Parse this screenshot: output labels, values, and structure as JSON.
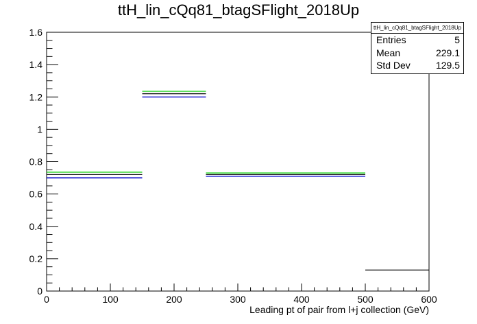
{
  "chart_data": {
    "type": "histogram",
    "title": "ttH_lin_cQq81_btagSFlight_2018Up",
    "xlabel": "Leading pt of pair from l+j collection (GeV)",
    "ylabel": "",
    "xlim": [
      0,
      600
    ],
    "ylim": [
      0,
      1.6
    ],
    "xticks": [
      "0",
      "100",
      "200",
      "300",
      "400",
      "500",
      "600"
    ],
    "yticks": [
      "0",
      "0.2",
      "0.4",
      "0.6",
      "0.8",
      "1",
      "1.2",
      "1.4",
      "1.6"
    ],
    "bins": [
      {
        "x0": 0,
        "x1": 150,
        "black": 0.72,
        "green": 0.735,
        "blue": 0.7
      },
      {
        "x0": 150,
        "x1": 250,
        "black": 1.22,
        "green": 1.235,
        "blue": 1.2
      },
      {
        "x0": 250,
        "x1": 500,
        "black": 0.72,
        "green": 0.73,
        "blue": 0.71
      },
      {
        "x0": 500,
        "x1": 600,
        "black": 0.13
      }
    ],
    "series_colors": {
      "black": "#000000",
      "green": "#00cc00",
      "blue": "#0000cc"
    },
    "stats": {
      "name": "ttH_lin_cQq81_btagSFlight_2018Up",
      "entries_label": "Entries",
      "entries": "5",
      "mean_label": "Mean",
      "mean": "229.1",
      "std_label": "Std Dev",
      "std": "129.5"
    }
  }
}
